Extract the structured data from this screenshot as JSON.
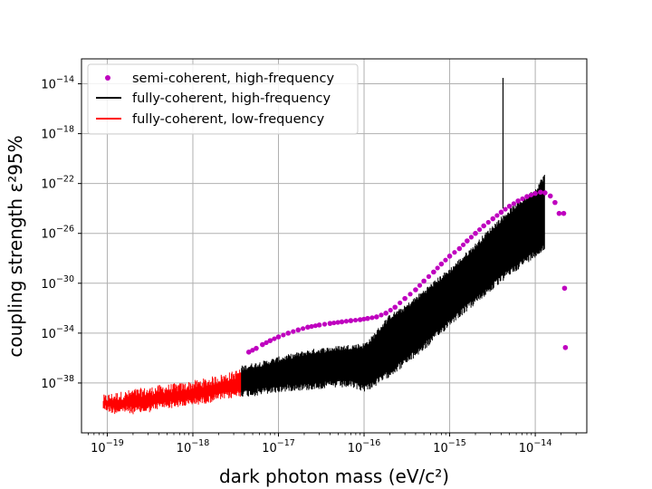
{
  "chart_data": {
    "type": "scatter",
    "xlabel": "dark photon mass (eV/c²)",
    "ylabel": "coupling strength ε²95%",
    "xscale": "log",
    "yscale": "log",
    "xlim": [
      5e-20,
      4e-14
    ],
    "ylim": [
      1e-42,
      1e-12
    ],
    "grid": true,
    "legend_position": "top-left",
    "x_ticks": [
      {
        "value": 1e-19,
        "mantissa": "10",
        "exp": "−19"
      },
      {
        "value": 1e-18,
        "mantissa": "10",
        "exp": "−18"
      },
      {
        "value": 1e-17,
        "mantissa": "10",
        "exp": "−17"
      },
      {
        "value": 1e-16,
        "mantissa": "10",
        "exp": "−16"
      },
      {
        "value": 1e-15,
        "mantissa": "10",
        "exp": "−15"
      },
      {
        "value": 1e-14,
        "mantissa": "10",
        "exp": "−14"
      }
    ],
    "y_ticks": [
      {
        "value": 1e-38,
        "mantissa": "10",
        "exp": "−38"
      },
      {
        "value": 1e-34,
        "mantissa": "10",
        "exp": "−34"
      },
      {
        "value": 1e-30,
        "mantissa": "10",
        "exp": "−30"
      },
      {
        "value": 1e-26,
        "mantissa": "10",
        "exp": "−26"
      },
      {
        "value": 1e-22,
        "mantissa": "10",
        "exp": "−22"
      },
      {
        "value": 1e-18,
        "mantissa": "10",
        "exp": "−18"
      },
      {
        "value": 1e-14,
        "mantissa": "10",
        "exp": "−14"
      }
    ],
    "series": [
      {
        "name": "semi-coherent, high-frequency",
        "style": "points",
        "color": "#bf00bf",
        "x": [
          4.5e-18,
          5.5e-18,
          6.5e-18,
          8e-18,
          1e-17,
          1.3e-17,
          1.7e-17,
          2.2e-17,
          3e-17,
          4e-17,
          5.5e-17,
          7e-17,
          9e-17,
          1.1e-16,
          1.4e-16,
          1.8e-16,
          2.3e-16,
          3e-16,
          4e-16,
          5e-16,
          6.5e-16,
          8e-16,
          1e-15,
          1.3e-15,
          1.6e-15,
          2e-15,
          2.5e-15,
          3.2e-15,
          4e-15,
          5e-15,
          6.3e-15,
          8e-15,
          1e-14,
          1.15e-14,
          1.3e-14,
          1.5e-14,
          1.7e-14,
          1.9e-14,
          2.15e-14,
          2.2e-14,
          2.25e-14
        ],
        "y": [
          3e-36,
          6e-36,
          1.2e-35,
          2.5e-35,
          5e-35,
          1e-34,
          1.8e-34,
          3e-34,
          4.5e-34,
          6e-34,
          8e-34,
          1e-33,
          1.2e-33,
          1.5e-33,
          2e-33,
          4e-33,
          1.2e-32,
          6e-32,
          3e-31,
          1.5e-30,
          8e-30,
          3.5e-29,
          1.5e-28,
          6e-28,
          2.5e-27,
          1e-26,
          4e-26,
          1.5e-25,
          5e-25,
          1.5e-24,
          4e-24,
          9e-24,
          1.6e-23,
          2e-23,
          1.8e-23,
          1e-23,
          3e-24,
          4e-25,
          4e-25,
          4e-31,
          7e-36
        ]
      },
      {
        "name": "fully-coherent, high-frequency",
        "style": "band",
        "color": "#000000",
        "x": [
          3.7e-18,
          5e-18,
          7e-18,
          1e-17,
          1.5e-17,
          2e-17,
          3e-17,
          5e-17,
          7e-17,
          1e-16,
          1.2e-16,
          1.5e-16,
          2e-16,
          3e-16,
          5e-16,
          8e-16,
          1e-15,
          2e-15,
          3e-15,
          5e-15,
          8e-15,
          1e-14,
          1.3e-14
        ],
        "y_low": [
          2e-39,
          2e-39,
          3e-39,
          4e-39,
          6e-39,
          6e-39,
          8e-39,
          1e-38,
          1e-38,
          5e-39,
          8e-39,
          2e-38,
          8e-38,
          6e-37,
          1e-35,
          2e-34,
          1e-33,
          5e-32,
          5e-31,
          1e-29,
          1e-28,
          3e-28,
          1e-27
        ],
        "y_high": [
          1.5e-37,
          2.5e-37,
          4e-37,
          8e-37,
          1.5e-36,
          2.5e-36,
          4e-36,
          6e-36,
          8e-36,
          1e-35,
          3e-35,
          2e-34,
          2e-33,
          1e-32,
          2e-31,
          3e-30,
          1e-29,
          1e-27,
          2e-26,
          6e-25,
          8e-24,
          2.5e-23,
          5e-22
        ]
      },
      {
        "name": "fully-coherent, low-frequency",
        "style": "band",
        "color": "#ff0000",
        "x": [
          9e-20,
          1.2e-19,
          1.6e-19,
          2e-19,
          3e-19,
          4e-19,
          6e-19,
          8e-19,
          1e-18,
          1.5e-18,
          2e-18,
          3e-18,
          3.7e-18
        ],
        "y_low": [
          1.5e-40,
          8e-41,
          1e-40,
          8e-41,
          1e-40,
          2e-40,
          2.5e-40,
          3e-40,
          4e-40,
          6e-40,
          1e-39,
          1.5e-39,
          2e-39
        ],
        "y_high": [
          5e-40,
          8e-40,
          1e-39,
          1.5e-39,
          2e-39,
          3e-39,
          4e-39,
          5e-39,
          7e-39,
          1.2e-38,
          2e-38,
          4e-38,
          8e-38
        ]
      }
    ]
  }
}
